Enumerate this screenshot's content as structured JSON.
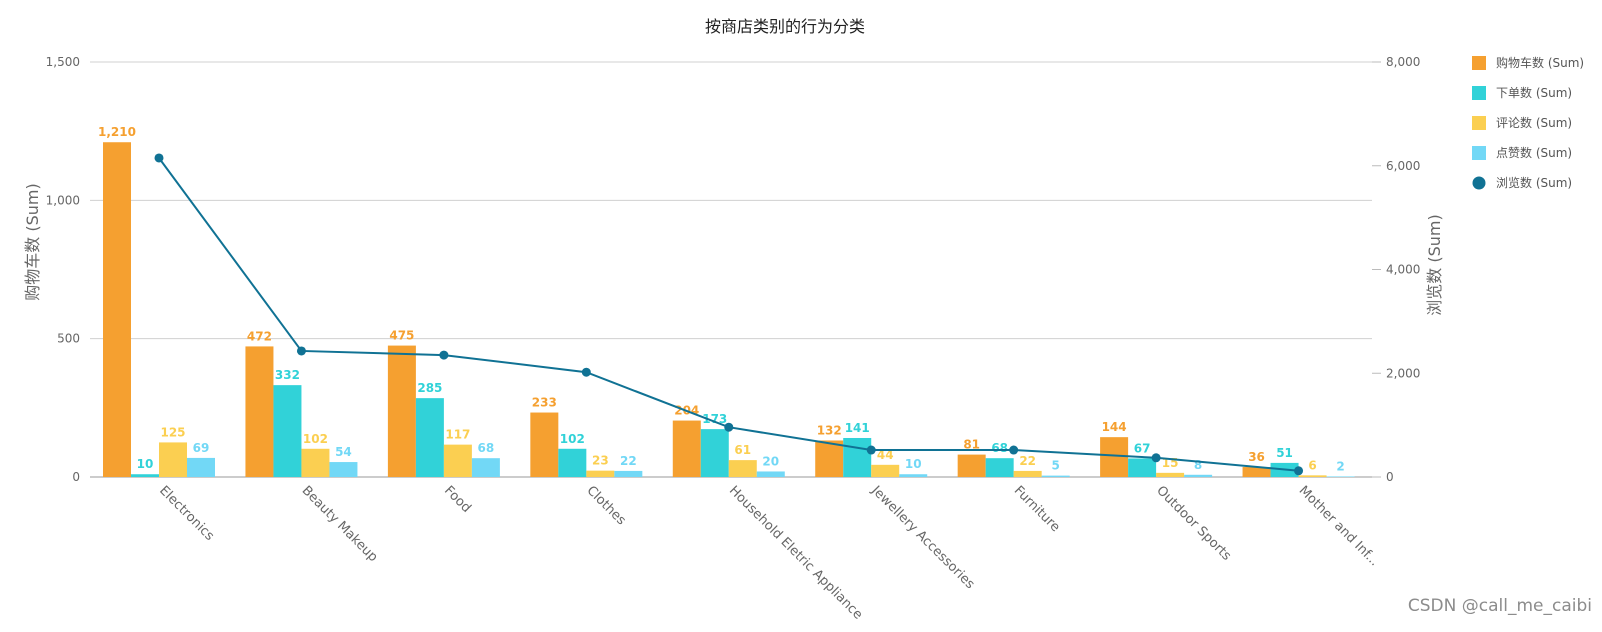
{
  "watermark": "CSDN @call_me_caibi",
  "chart_data": {
    "type": "bar",
    "title": "按商店类别的行为分类",
    "xlabel": "",
    "ylabel": "购物车数 (Sum)",
    "y2label": "浏览数 (Sum)",
    "ylim": [
      0,
      1500
    ],
    "y2lim": [
      0,
      8000
    ],
    "yticks": [
      "0",
      "500",
      "1,000",
      "1,500"
    ],
    "y2ticks": [
      "0",
      "2,000",
      "4,000",
      "6,000",
      "8,000"
    ],
    "grid": true,
    "legend_position": "top-right",
    "categories": [
      "Electronics",
      "Beauty Makeup",
      "Food",
      "Clothes",
      "Household Eletric Appliance",
      "Jewellery Accessories",
      "Furniture",
      "Outdoor Sports",
      "Mother and Inf..."
    ],
    "series": [
      {
        "name": "购物车数 (Sum)",
        "type": "bar",
        "axis": "left",
        "color": "#f5a030",
        "values": [
          1210,
          472,
          475,
          233,
          204,
          132,
          81,
          144,
          36
        ],
        "labels": [
          "1,210",
          "472",
          "475",
          "233",
          "204",
          "132",
          "81",
          "144",
          "36"
        ]
      },
      {
        "name": "下单数 (Sum)",
        "type": "bar",
        "axis": "left",
        "color": "#31d2d8",
        "values": [
          10,
          332,
          285,
          102,
          173,
          141,
          68,
          67,
          51
        ],
        "labels": [
          "10",
          "332",
          "285",
          "102",
          "173",
          "141",
          "68",
          "67",
          "51"
        ]
      },
      {
        "name": "评论数 (Sum)",
        "type": "bar",
        "axis": "left",
        "color": "#fbcf51",
        "values": [
          125,
          102,
          117,
          23,
          61,
          44,
          22,
          15,
          6
        ],
        "labels": [
          "125",
          "102",
          "117",
          "23",
          "61",
          "44",
          "22",
          "15",
          "6"
        ]
      },
      {
        "name": "点赞数 (Sum)",
        "type": "bar",
        "axis": "left",
        "color": "#72d8f6",
        "values": [
          69,
          54,
          68,
          22,
          20,
          10,
          5,
          8,
          2
        ],
        "labels": [
          "69",
          "54",
          "68",
          "22",
          "20",
          "10",
          "5",
          "8",
          "2"
        ]
      },
      {
        "name": "浏览数 (Sum)",
        "type": "line",
        "axis": "right",
        "color": "#107294",
        "values": [
          6150,
          2430,
          2350,
          2020,
          960,
          520,
          520,
          370,
          120
        ]
      }
    ]
  }
}
